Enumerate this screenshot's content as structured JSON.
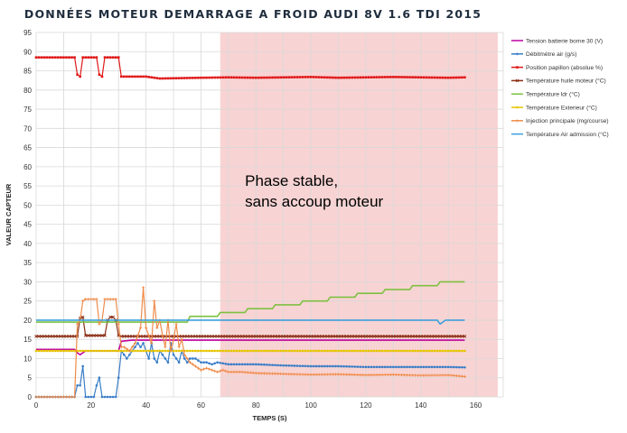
{
  "chart_data": {
    "type": "line",
    "title": "DONNÉES MOTEUR DEMARRAGE A FROID AUDI 8V 1.6 TDI 2015",
    "xlabel": "TEMPS (S)",
    "ylabel": "VALEUR CAPTEUR",
    "xlim": [
      0,
      170
    ],
    "ylim": [
      0,
      95
    ],
    "x_ticks": [
      0,
      20,
      40,
      60,
      80,
      100,
      120,
      140,
      160
    ],
    "y_ticks": [
      0,
      5,
      10,
      15,
      20,
      25,
      30,
      35,
      40,
      45,
      50,
      55,
      60,
      65,
      70,
      75,
      80,
      85,
      90,
      95
    ],
    "grid": true,
    "legend_position": "right",
    "stable_phase": {
      "x_start": 67,
      "x_end": 168,
      "color": "#f8d3d3"
    },
    "annotation": {
      "line1": "Phase stable,",
      "line2": "sans accoup moteur",
      "x": 76,
      "y": 55
    },
    "series": [
      {
        "name": "Tension batterie borne 30 (V)",
        "color": "#c000a0",
        "marker": "none",
        "x": [
          0,
          14,
          15,
          16,
          17,
          18,
          30,
          31,
          35,
          60,
          156
        ],
        "y": [
          12.4,
          12.4,
          11.5,
          11.0,
          11.5,
          12.0,
          12.0,
          14.5,
          14.8,
          14.8,
          14.8
        ]
      },
      {
        "name": "Débitmètre air (g/s)",
        "color": "#3a7ec8",
        "marker": "circle",
        "x": [
          0,
          13,
          14,
          15,
          16,
          17,
          18,
          19,
          20,
          21,
          22,
          23,
          24,
          25,
          26,
          27,
          28,
          29,
          30,
          31,
          32,
          33,
          34,
          35,
          36,
          37,
          38,
          39,
          40,
          41,
          42,
          43,
          44,
          45,
          46,
          47,
          48,
          49,
          50,
          51,
          52,
          53,
          54,
          55,
          56,
          58,
          60,
          62,
          64,
          66,
          70,
          75,
          80,
          90,
          100,
          110,
          120,
          130,
          140,
          150,
          156
        ],
        "y": [
          0,
          0,
          0,
          3,
          3,
          8,
          0,
          0,
          0,
          0,
          3,
          5,
          0,
          0,
          0,
          0,
          0,
          0,
          5,
          12,
          11,
          10,
          11,
          12,
          13,
          14,
          13,
          14,
          12,
          10,
          14,
          10,
          9,
          12,
          11,
          10,
          9,
          14,
          11,
          10,
          9,
          12,
          10,
          9,
          10,
          10,
          9,
          9,
          8.5,
          9,
          8.5,
          8.5,
          8.5,
          8.2,
          8.0,
          8.0,
          7.8,
          7.8,
          7.8,
          7.8,
          7.7
        ]
      },
      {
        "name": "Position papillon (absolue %)",
        "color": "#e01818",
        "marker": "square",
        "x": [
          0,
          14,
          15,
          16,
          17,
          18,
          22,
          23,
          24,
          25,
          26,
          30,
          31,
          35,
          40,
          45,
          60,
          70,
          80,
          90,
          100,
          110,
          120,
          130,
          140,
          150,
          156
        ],
        "y": [
          88.5,
          88.5,
          84,
          83.5,
          88.5,
          88.5,
          88.5,
          84,
          83.5,
          88.5,
          88.5,
          88.5,
          83.5,
          83.5,
          83.5,
          83.0,
          83.2,
          83.3,
          83.2,
          83.3,
          83.4,
          83.2,
          83.3,
          83.4,
          83.3,
          83.2,
          83.3
        ]
      },
      {
        "name": "Température huile moteur (°C)",
        "color": "#8b2e16",
        "marker": "x",
        "x": [
          0,
          15,
          16,
          17,
          18,
          25,
          26,
          27,
          28,
          29,
          30,
          31,
          40,
          60,
          80,
          100,
          120,
          140,
          156
        ],
        "y": [
          15.8,
          15.8,
          20.5,
          20.8,
          16,
          16,
          20,
          20.8,
          20.8,
          20,
          16,
          15.8,
          15.8,
          15.8,
          15.8,
          15.8,
          15.8,
          15.8,
          15.8
        ]
      },
      {
        "name": "Température ldr (°C)",
        "color": "#7dc142",
        "marker": "none",
        "x": [
          0,
          20,
          40,
          45,
          55,
          56,
          66,
          67,
          76,
          77,
          86,
          87,
          96,
          97,
          106,
          107,
          116,
          117,
          126,
          127,
          136,
          137,
          146,
          147,
          156
        ],
        "y": [
          19.5,
          19.5,
          19.5,
          19.5,
          19.5,
          21,
          21,
          22,
          22,
          23,
          23,
          24,
          24,
          25,
          25,
          26,
          26,
          27,
          27,
          28,
          28,
          29,
          29,
          30,
          30
        ]
      },
      {
        "name": "Température Exterieur (°C)",
        "color": "#e6c400",
        "marker": "circle",
        "x": [
          0,
          156
        ],
        "y": [
          12,
          12
        ]
      },
      {
        "name": "Injection principale (mg/course)",
        "color": "#f08c4a",
        "marker": "plus",
        "x": [
          0,
          13,
          14,
          15,
          16,
          17,
          18,
          22,
          23,
          24,
          25,
          29,
          30,
          31,
          32,
          34,
          36,
          38,
          39,
          40,
          41,
          42,
          43,
          44,
          45,
          46,
          47,
          48,
          49,
          50,
          51,
          52,
          53,
          54,
          55,
          56,
          58,
          60,
          62,
          64,
          66,
          68,
          70,
          75,
          80,
          90,
          100,
          110,
          120,
          130,
          140,
          150,
          156
        ],
        "y": [
          0,
          0,
          0,
          19,
          20,
          25,
          25.5,
          25.5,
          19,
          20,
          25.5,
          25.5,
          19,
          13,
          13,
          12,
          14,
          18,
          28.5,
          18,
          16,
          14,
          25,
          18,
          20,
          16,
          13,
          20,
          12,
          15,
          19,
          13,
          15,
          11,
          10,
          9,
          8,
          7,
          7.5,
          7,
          6.5,
          7,
          6.5,
          6.5,
          6.2,
          6.0,
          5.8,
          5.9,
          5.7,
          5.8,
          5.6,
          5.7,
          5.3
        ]
      },
      {
        "name": "Température Air admission (°C)",
        "color": "#3aa0dc",
        "marker": "none",
        "x": [
          0,
          40,
          60,
          100,
          146,
          147,
          148,
          149,
          156
        ],
        "y": [
          20,
          20,
          20,
          20,
          20,
          19,
          19.5,
          20,
          20
        ]
      }
    ]
  }
}
